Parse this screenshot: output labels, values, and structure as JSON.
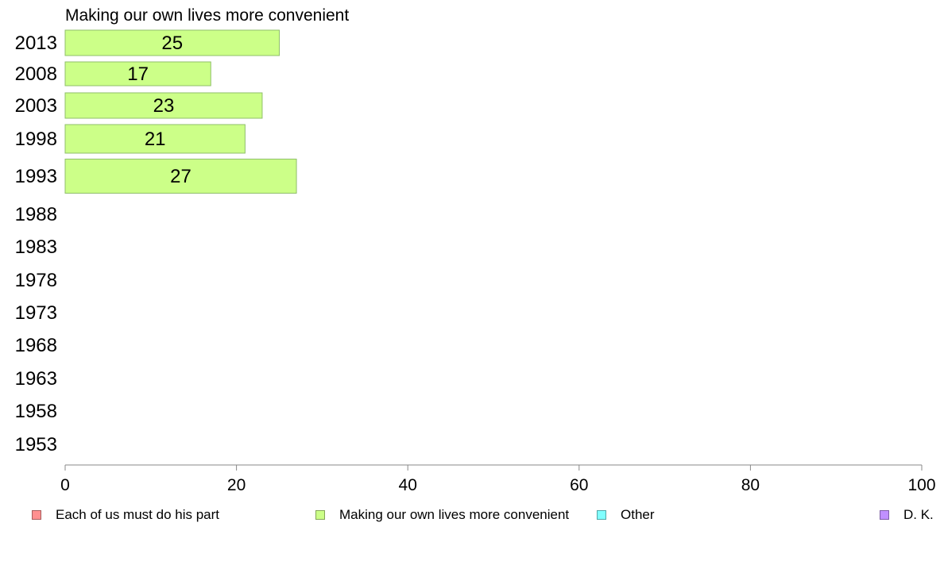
{
  "chart_data": {
    "type": "bar",
    "orientation": "horizontal",
    "title": "Making our own lives more convenient",
    "categories": [
      "2013",
      "2008",
      "2003",
      "1998",
      "1993",
      "1988",
      "1983",
      "1978",
      "1973",
      "1968",
      "1963",
      "1958",
      "1953"
    ],
    "series": [
      {
        "name": "Making our own lives more convenient",
        "color": "#ccff88",
        "values": [
          25,
          17,
          23,
          21,
          27,
          null,
          null,
          null,
          null,
          null,
          null,
          null,
          null
        ]
      }
    ],
    "xlim": [
      0,
      100
    ],
    "x_ticks": [
      "0",
      "20",
      "40",
      "60",
      "80",
      "100"
    ],
    "grid": false,
    "legend_position": "bottom"
  },
  "legend": {
    "items": [
      {
        "label": "Each of us must do his part",
        "color": "#ff9090"
      },
      {
        "label": "Making our own lives more convenient",
        "color": "#ccff88"
      },
      {
        "label": "Other",
        "color": "#80ffff"
      },
      {
        "label": "D. K.",
        "color": "#c090ff"
      }
    ]
  }
}
